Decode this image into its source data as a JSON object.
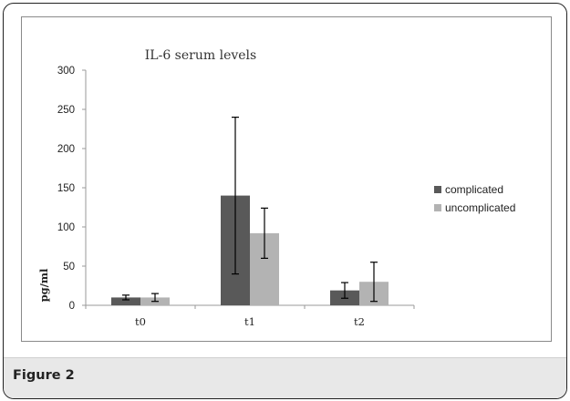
{
  "figure": {
    "caption": "Figure 2"
  },
  "colors": {
    "complicated": "#595959",
    "uncomplicated": "#b3b3b3",
    "error_bar": "#000000"
  },
  "chart_data": {
    "type": "bar",
    "title": "IL-6 serum levels",
    "xlabel": "",
    "ylabel": "pg/ml",
    "ylim": [
      0,
      300
    ],
    "yticks": [
      0,
      50,
      100,
      150,
      200,
      250,
      300
    ],
    "categories": [
      "t0",
      "t1",
      "t2"
    ],
    "series": [
      {
        "name": "complicated",
        "values": [
          10,
          140,
          19
        ],
        "error": [
          3,
          100,
          10
        ]
      },
      {
        "name": "uncomplicated",
        "values": [
          10,
          92,
          30
        ],
        "error": [
          5,
          32,
          25
        ]
      }
    ],
    "legend_position": "right",
    "grid": false
  }
}
